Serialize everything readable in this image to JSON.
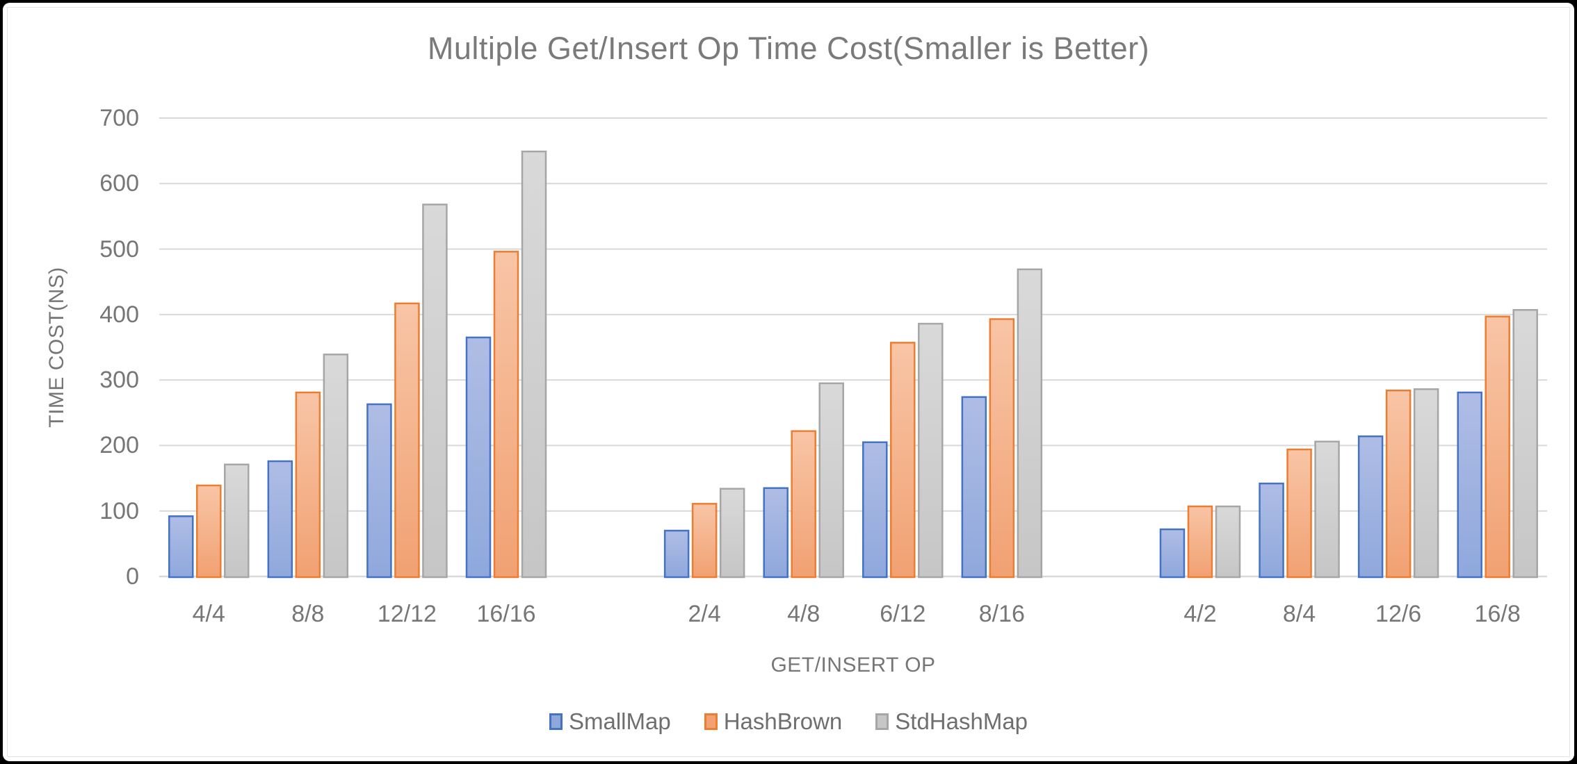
{
  "chart_data": {
    "type": "bar",
    "title": "Multiple Get/Insert Op Time Cost(Smaller is Better)",
    "xlabel": "GET/INSERT OP",
    "ylabel": "TIME COST(NS)",
    "ylim": [
      0,
      700
    ],
    "yticks": [
      0,
      100,
      200,
      300,
      400,
      500,
      600,
      700
    ],
    "grid": true,
    "legend_position": "bottom",
    "clusters": [
      [
        "4/4",
        "8/8",
        "12/12",
        "16/16"
      ],
      [
        "2/4",
        "4/8",
        "6/12",
        "8/16"
      ],
      [
        "4/2",
        "8/4",
        "12/6",
        "16/8"
      ]
    ],
    "slot_count": 14,
    "series": [
      {
        "name": "SmallMap",
        "border_color": "#4472C4",
        "fill_top": "#AFBDE5",
        "fill_bottom": "#8FA8DC",
        "values": [
          92,
          176,
          263,
          365,
          70,
          135,
          205,
          274,
          72,
          142,
          214,
          281
        ]
      },
      {
        "name": "HashBrown",
        "border_color": "#ED7D31",
        "fill_top": "#F8C5A6",
        "fill_bottom": "#F1A172",
        "values": [
          139,
          281,
          417,
          496,
          111,
          222,
          357,
          393,
          107,
          194,
          284,
          397
        ]
      },
      {
        "name": "StdHashMap",
        "border_color": "#A6A6A6",
        "fill_top": "#D9D9D9",
        "fill_bottom": "#C6C6C6",
        "values": [
          171,
          339,
          568,
          649,
          134,
          295,
          386,
          469,
          107,
          206,
          286,
          407
        ]
      }
    ],
    "grid_color": "#D9D9D9",
    "text_color": "#767676"
  }
}
